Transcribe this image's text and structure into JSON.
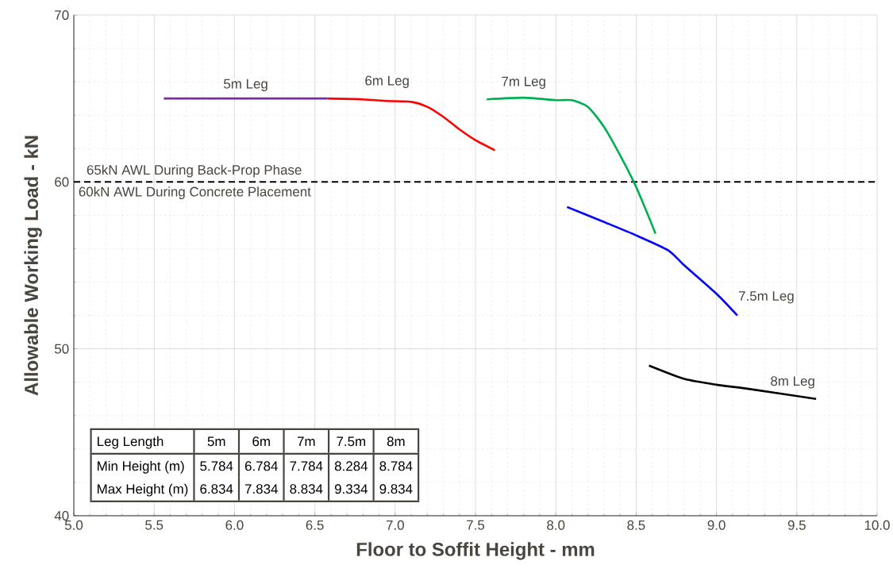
{
  "chart_data": {
    "type": "line",
    "xlabel": "Floor to Soffit Height - mm",
    "ylabel": "Allowable Working Load - kN",
    "xlim": [
      5,
      10
    ],
    "ylim": [
      40,
      70
    ],
    "xticks": [
      {
        "value": 5,
        "label": "5.0"
      },
      5.5,
      {
        "value": 6,
        "label": "6.0"
      },
      6.5,
      {
        "value": 7,
        "label": "7.0"
      },
      7.5,
      {
        "value": 8,
        "label": "8.0"
      },
      8.5,
      {
        "value": 9,
        "label": "9.0"
      },
      9.5,
      {
        "value": 10,
        "label": "10.0"
      }
    ],
    "yticks": [
      40,
      50,
      60,
      70
    ],
    "grid": true,
    "series": [
      {
        "name": "5m Leg",
        "color": "#7030a0",
        "x": [
          5.56,
          6.58
        ],
        "values": [
          65,
          65
        ]
      },
      {
        "name": "6m Leg",
        "color": "#ff0000",
        "x": [
          6.58,
          6.8,
          6.95,
          7.1,
          7.2,
          7.3,
          7.4,
          7.5,
          7.62
        ],
        "values": [
          65,
          64.95,
          64.85,
          64.8,
          64.5,
          63.9,
          63.15,
          62.5,
          61.9
        ]
      },
      {
        "name": "7m Leg",
        "color": "#00b050",
        "x": [
          7.57,
          7.8,
          8.0,
          8.1,
          8.2,
          8.3,
          8.4,
          8.5,
          8.6,
          8.62
        ],
        "values": [
          64.95,
          65.05,
          64.9,
          64.9,
          64.5,
          63.3,
          61.6,
          59.7,
          57.4,
          56.9
        ]
      },
      {
        "name": "7.5m Leg",
        "color": "#0000ff",
        "x": [
          8.07,
          8.3,
          8.5,
          8.7,
          8.8,
          9.0,
          9.13
        ],
        "values": [
          58.5,
          57.6,
          56.8,
          55.9,
          55,
          53.3,
          52.0
        ]
      },
      {
        "name": "8m Leg",
        "color": "#000000",
        "x": [
          8.58,
          8.8,
          9.0,
          9.2,
          9.62
        ],
        "values": [
          49.0,
          48.2,
          47.85,
          47.6,
          47.0
        ]
      }
    ],
    "ref_lines": [
      {
        "axis": "y",
        "value": 60,
        "label": "60kN AWL During Concrete Placement",
        "color": "#000000",
        "line_style": "dashed"
      }
    ],
    "annotations": [
      {
        "text": "65kN AWL During Back-Prop Phase",
        "x": 5.05,
        "y": 60
      },
      "Leg Length",
      "5m",
      "6m",
      "7m",
      "7.5m",
      "8m",
      "Min Height (m)",
      "5.784",
      "6.784",
      "7.784",
      "8.284",
      "8.784",
      "Max Height (m)",
      "6.834",
      "7.834",
      "8.834",
      "9.334",
      "9.834"
    ]
  }
}
